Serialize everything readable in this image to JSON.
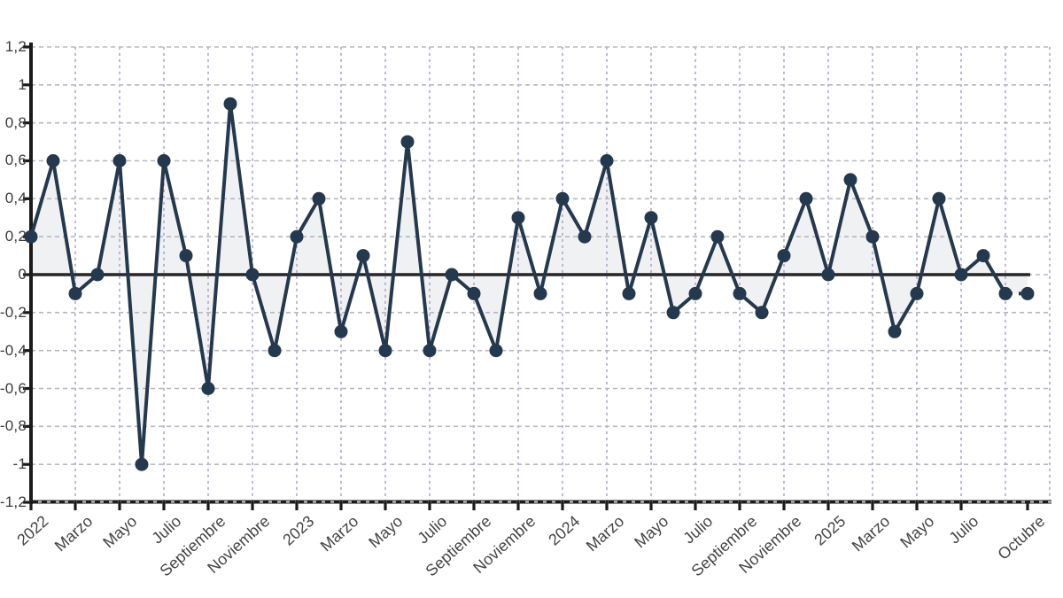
{
  "chart_data": {
    "type": "area",
    "subtype": "line-with-markers-filled-to-zero",
    "ylim": [
      -1.2,
      1.2
    ],
    "grid": true,
    "legend_position": "none",
    "line_color": "#24384e",
    "marker_color": "#24384e",
    "area_fill": "rgba(36,56,78,0.07)",
    "zero_baseline": true,
    "last_segment_dashed": true,
    "values": [
      0.2,
      0.6,
      -0.1,
      0.0,
      0.6,
      -1.0,
      0.6,
      0.1,
      -0.6,
      0.9,
      0.0,
      -0.4,
      0.2,
      0.4,
      -0.3,
      0.1,
      -0.4,
      0.7,
      -0.4,
      0.0,
      -0.1,
      -0.4,
      0.3,
      -0.1,
      0.4,
      0.2,
      0.6,
      -0.1,
      0.3,
      -0.2,
      -0.1,
      0.2,
      -0.1,
      -0.2,
      0.1,
      0.4,
      0.0,
      0.5,
      0.2,
      -0.3,
      -0.1,
      0.4,
      0.0,
      0.1,
      -0.1,
      -0.1
    ],
    "x_tick_labels": [
      {
        "index": 0,
        "label": "2022"
      },
      {
        "index": 2,
        "label": "Marzo"
      },
      {
        "index": 4,
        "label": "Mayo"
      },
      {
        "index": 6,
        "label": "Julio"
      },
      {
        "index": 8,
        "label": "Septiembre"
      },
      {
        "index": 10,
        "label": "Noviembre"
      },
      {
        "index": 12,
        "label": "2023"
      },
      {
        "index": 14,
        "label": "Marzo"
      },
      {
        "index": 16,
        "label": "Mayo"
      },
      {
        "index": 18,
        "label": "Julio"
      },
      {
        "index": 20,
        "label": "Septiembre"
      },
      {
        "index": 22,
        "label": "Noviembre"
      },
      {
        "index": 24,
        "label": "2024"
      },
      {
        "index": 26,
        "label": "Marzo"
      },
      {
        "index": 28,
        "label": "Mayo"
      },
      {
        "index": 30,
        "label": "Julio"
      },
      {
        "index": 32,
        "label": "Septiembre"
      },
      {
        "index": 34,
        "label": "Noviembre"
      },
      {
        "index": 36,
        "label": "2025"
      },
      {
        "index": 38,
        "label": "Marzo"
      },
      {
        "index": 40,
        "label": "Mayo"
      },
      {
        "index": 42,
        "label": "Julio"
      },
      {
        "index": 45,
        "label": "Octubre"
      }
    ],
    "y_ticks": [
      {
        "value": 1.2,
        "label": "1,2"
      },
      {
        "value": 1.0,
        "label": "1"
      },
      {
        "value": 0.8,
        "label": "0,8"
      },
      {
        "value": 0.6,
        "label": "0,6"
      },
      {
        "value": 0.4,
        "label": "0,4"
      },
      {
        "value": 0.2,
        "label": "0,2"
      },
      {
        "value": 0.0,
        "label": "0"
      },
      {
        "value": -0.2,
        "label": "-0,2"
      },
      {
        "value": -0.4,
        "label": "-0,4"
      },
      {
        "value": -0.6,
        "label": "-0,6"
      },
      {
        "value": -0.8,
        "label": "-0,8"
      },
      {
        "value": -1.0,
        "label": "-1"
      },
      {
        "value": -1.2,
        "label": "-1,2"
      }
    ],
    "colors": {
      "horizontal_grid": "#b7b7c1",
      "vertical_grid": "#aea6c6",
      "axis": "#1b1b1b",
      "zero_line": "#262626",
      "tick_text": "#3a3a3a"
    }
  }
}
